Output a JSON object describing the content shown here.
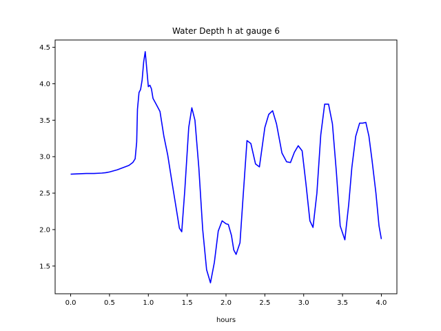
{
  "chart_data": {
    "type": "line",
    "title": "Water Depth h at gauge 6",
    "xlabel": "hours",
    "ylabel": "",
    "xlim": [
      -0.2,
      4.2
    ],
    "ylim": [
      1.12,
      4.6
    ],
    "xticks": [
      0.0,
      0.5,
      1.0,
      1.5,
      2.0,
      2.5,
      3.0,
      3.5,
      4.0
    ],
    "xtick_labels": [
      "0.0",
      "0.5",
      "1.0",
      "1.5",
      "2.0",
      "2.5",
      "3.0",
      "3.5",
      "4.0"
    ],
    "yticks": [
      1.5,
      2.0,
      2.5,
      3.0,
      3.5,
      4.0,
      4.5
    ],
    "ytick_labels": [
      "1.5",
      "2.0",
      "2.5",
      "3.0",
      "3.5",
      "4.0",
      "4.5"
    ],
    "grid": false,
    "series": [
      {
        "color": "#0000ff",
        "x": [
          0.0,
          0.1,
          0.2,
          0.3,
          0.4,
          0.45,
          0.5,
          0.6,
          0.7,
          0.75,
          0.8,
          0.83,
          0.85,
          0.86,
          0.88,
          0.9,
          0.92,
          0.94,
          0.96,
          0.98,
          1.0,
          1.02,
          1.04,
          1.06,
          1.1,
          1.15,
          1.2,
          1.25,
          1.3,
          1.35,
          1.4,
          1.43,
          1.47,
          1.52,
          1.56,
          1.6,
          1.65,
          1.7,
          1.75,
          1.8,
          1.85,
          1.9,
          1.95,
          2.0,
          2.03,
          2.07,
          2.1,
          2.13,
          2.18,
          2.22,
          2.27,
          2.32,
          2.38,
          2.43,
          2.5,
          2.55,
          2.6,
          2.65,
          2.72,
          2.78,
          2.83,
          2.88,
          2.93,
          2.98,
          3.03,
          3.08,
          3.12,
          3.17,
          3.22,
          3.27,
          3.32,
          3.37,
          3.42,
          3.47,
          3.53,
          3.58,
          3.62,
          3.67,
          3.72,
          3.76,
          3.8,
          3.84,
          3.88,
          3.93,
          3.97,
          4.0
        ],
        "y": [
          2.76,
          2.765,
          2.77,
          2.77,
          2.775,
          2.78,
          2.79,
          2.82,
          2.86,
          2.88,
          2.92,
          2.97,
          3.2,
          3.65,
          3.88,
          3.92,
          4.05,
          4.3,
          4.44,
          4.2,
          3.96,
          3.98,
          3.93,
          3.8,
          3.72,
          3.62,
          3.28,
          3.02,
          2.68,
          2.35,
          2.02,
          1.97,
          2.55,
          3.4,
          3.67,
          3.5,
          2.85,
          2.0,
          1.45,
          1.27,
          1.55,
          1.98,
          2.12,
          2.08,
          2.07,
          1.92,
          1.72,
          1.66,
          1.82,
          2.45,
          3.22,
          3.18,
          2.9,
          2.86,
          3.4,
          3.58,
          3.63,
          3.45,
          3.05,
          2.93,
          2.92,
          3.06,
          3.15,
          3.08,
          2.62,
          2.12,
          2.03,
          2.5,
          3.3,
          3.72,
          3.72,
          3.45,
          2.8,
          2.05,
          1.86,
          2.35,
          2.85,
          3.28,
          3.46,
          3.46,
          3.47,
          3.28,
          2.95,
          2.5,
          2.05,
          1.87
        ]
      }
    ]
  }
}
